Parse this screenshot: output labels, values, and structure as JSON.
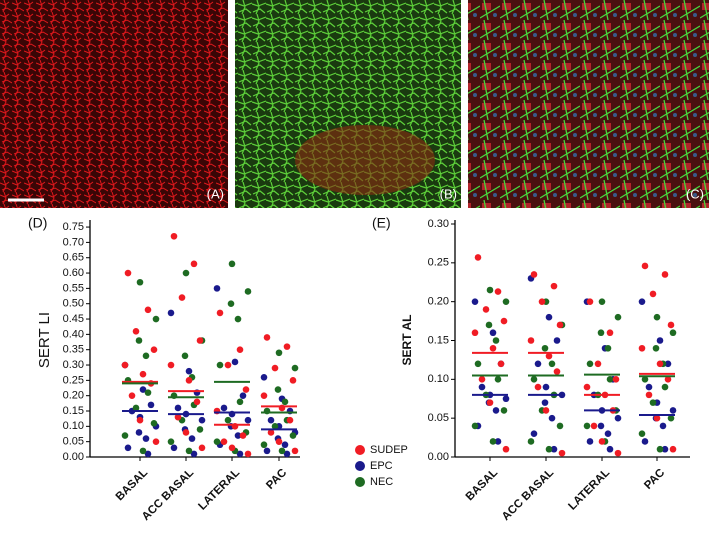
{
  "images": [
    {
      "label": "(A)"
    },
    {
      "label": "(B)"
    },
    {
      "label": "(C)"
    }
  ],
  "chart_data": [
    {
      "type": "strip",
      "panel_label": "(D)",
      "y_label": "SERT LI",
      "categories": [
        "BASAL",
        "ACC BASAL",
        "LATERAL",
        "PAC"
      ],
      "ylim": [
        0,
        0.76
      ],
      "yticks": [
        {
          "value": 0,
          "label": "0.00"
        },
        {
          "value": 0.05,
          "label": "0.05"
        },
        {
          "value": 0.1,
          "label": "0.10"
        },
        {
          "value": 0.15,
          "label": "0.15"
        },
        {
          "value": 0.2,
          "label": "0.20"
        },
        {
          "value": 0.25,
          "label": "0.25"
        },
        {
          "value": 0.3,
          "label": "0.30"
        },
        {
          "value": 0.35,
          "label": "0.35"
        },
        {
          "value": 0.4,
          "label": "0.40"
        },
        {
          "value": 0.45,
          "label": "0.45"
        },
        {
          "value": 0.5,
          "label": "0.50"
        },
        {
          "value": 0.55,
          "label": "0.55"
        },
        {
          "value": 0.6,
          "label": "0.60"
        },
        {
          "value": 0.65,
          "label": "0.65"
        },
        {
          "value": 0.7,
          "label": "0.70"
        },
        {
          "value": 0.75,
          "label": "0.75"
        }
      ],
      "series": [
        {
          "name": "SUDEP",
          "color": "#f01c24",
          "values": [
            [
              0.6,
              0.48,
              0.41,
              0.35,
              0.3,
              0.27,
              0.24,
              0.2,
              0.12,
              0.05
            ],
            [
              0.72,
              0.63,
              0.52,
              0.38,
              0.3,
              0.25,
              0.18,
              0.13,
              0.08,
              0.03
            ],
            [
              0.47,
              0.35,
              0.3,
              0.22,
              0.15,
              0.1,
              0.07,
              0.05,
              0.03,
              0.01
            ],
            [
              0.39,
              0.36,
              0.29,
              0.25,
              0.2,
              0.16,
              0.12,
              0.08,
              0.05,
              0.02
            ]
          ],
          "means": [
            0.245,
            0.215,
            0.105,
            0.165
          ]
        },
        {
          "name": "EPC",
          "color": "#1a1a8c",
          "values": [
            [
              0.3,
              0.22,
              0.17,
              0.15,
              0.13,
              0.1,
              0.08,
              0.06,
              0.03,
              0.01
            ],
            [
              0.47,
              0.28,
              0.21,
              0.16,
              0.14,
              0.12,
              0.09,
              0.06,
              0.03,
              0.01
            ],
            [
              0.55,
              0.31,
              0.2,
              0.16,
              0.14,
              0.12,
              0.1,
              0.07,
              0.04,
              0.01
            ],
            [
              0.26,
              0.19,
              0.15,
              0.12,
              0.1,
              0.08,
              0.06,
              0.04,
              0.02,
              0.01
            ]
          ],
          "means": [
            0.15,
            0.14,
            0.145,
            0.09
          ]
        },
        {
          "name": "NEC",
          "color": "#1e6b22",
          "values": [
            [
              0.57,
              0.45,
              0.38,
              0.33,
              0.25,
              0.21,
              0.16,
              0.11,
              0.07,
              0.02
            ],
            [
              0.6,
              0.38,
              0.33,
              0.26,
              0.2,
              0.17,
              0.12,
              0.09,
              0.05,
              0.02
            ],
            [
              0.63,
              0.54,
              0.5,
              0.45,
              0.3,
              0.18,
              0.12,
              0.08,
              0.05,
              0.02
            ],
            [
              0.34,
              0.29,
              0.22,
              0.18,
              0.15,
              0.12,
              0.1,
              0.07,
              0.04,
              0.02
            ]
          ],
          "means": [
            0.24,
            0.195,
            0.245,
            0.145
          ]
        }
      ]
    },
    {
      "type": "strip",
      "panel_label": "(E)",
      "y_label": "SERT AL",
      "categories": [
        "BASAL",
        "ACC BASAL",
        "LATERAL",
        "PAC"
      ],
      "ylim": [
        0,
        0.3
      ],
      "yticks": [
        {
          "value": 0,
          "label": "0.00"
        },
        {
          "value": 0.05,
          "label": "0.05"
        },
        {
          "value": 0.1,
          "label": "0.10"
        },
        {
          "value": 0.15,
          "label": "0.15"
        },
        {
          "value": 0.2,
          "label": "0.20"
        },
        {
          "value": 0.25,
          "label": "0.25"
        },
        {
          "value": 0.3,
          "label": "0.30"
        }
      ],
      "series": [
        {
          "color": "#f01c24",
          "values": [
            [
              0.257,
              0.213,
              0.19,
              0.175,
              0.16,
              0.14,
              0.12,
              0.1,
              0.07,
              0.01
            ],
            [
              0.235,
              0.22,
              0.2,
              0.17,
              0.15,
              0.13,
              0.11,
              0.09,
              0.06,
              0.005
            ],
            [
              0.2,
              0.16,
              0.12,
              0.1,
              0.09,
              0.08,
              0.06,
              0.04,
              0.02,
              0.005
            ],
            [
              0.246,
              0.235,
              0.21,
              0.17,
              0.14,
              0.12,
              0.1,
              0.08,
              0.05,
              0.01
            ]
          ],
          "means": [
            0.134,
            0.134,
            0.08,
            0.107
          ]
        },
        {
          "color": "#1a1a8c",
          "values": [
            [
              0.2,
              0.16,
              0.12,
              0.09,
              0.08,
              0.075,
              0.07,
              0.06,
              0.04,
              0.02
            ],
            [
              0.23,
              0.18,
              0.15,
              0.12,
              0.09,
              0.08,
              0.07,
              0.05,
              0.03,
              0.01
            ],
            [
              0.2,
              0.14,
              0.1,
              0.08,
              0.06,
              0.05,
              0.04,
              0.03,
              0.02,
              0.01
            ],
            [
              0.2,
              0.15,
              0.12,
              0.09,
              0.07,
              0.06,
              0.05,
              0.04,
              0.02,
              0.01
            ]
          ],
          "means": [
            0.08,
            0.08,
            0.06,
            0.054
          ]
        },
        {
          "color": "#1e6b22",
          "values": [
            [
              0.215,
              0.2,
              0.17,
              0.15,
              0.12,
              0.1,
              0.08,
              0.06,
              0.04,
              0.02
            ],
            [
              0.2,
              0.17,
              0.14,
              0.12,
              0.1,
              0.08,
              0.06,
              0.04,
              0.02,
              0.01
            ],
            [
              0.2,
              0.18,
              0.16,
              0.14,
              0.12,
              0.1,
              0.08,
              0.06,
              0.04,
              0.02
            ],
            [
              0.18,
              0.16,
              0.14,
              0.12,
              0.1,
              0.09,
              0.07,
              0.05,
              0.03,
              0.01
            ]
          ],
          "means": [
            0.105,
            0.105,
            0.106,
            0.104
          ]
        }
      ]
    }
  ]
}
